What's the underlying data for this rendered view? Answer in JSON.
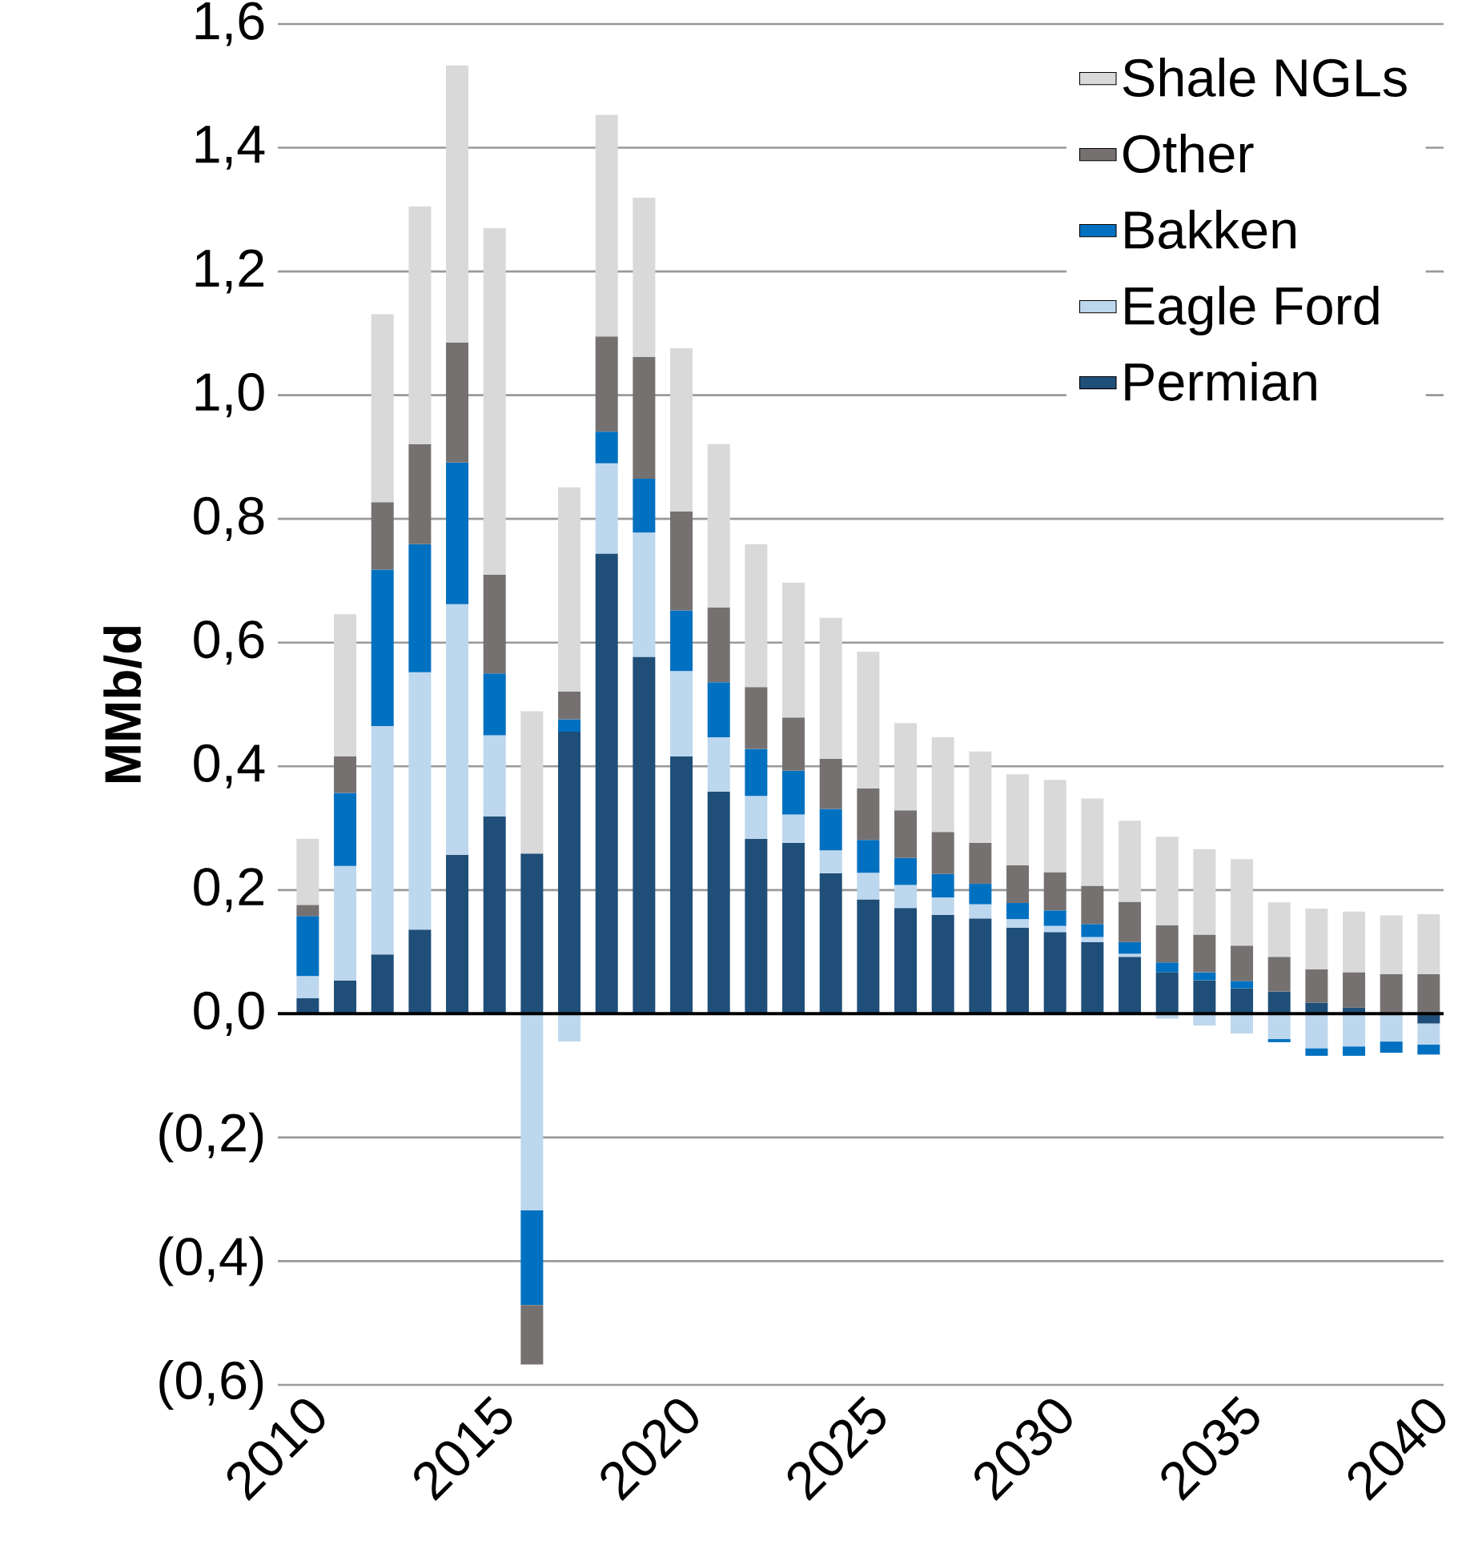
{
  "chart_data": {
    "type": "bar",
    "stacked": true,
    "ylabel": "MMb/d",
    "categories": [
      "2010",
      null,
      null,
      null,
      null,
      "2015",
      null,
      null,
      null,
      null,
      "2020",
      null,
      null,
      null,
      null,
      "2025",
      null,
      null,
      null,
      null,
      "2030",
      null,
      null,
      null,
      null,
      "2035",
      null,
      null,
      null,
      null,
      "2040"
    ],
    "series": [
      {
        "name": "Permian",
        "color": "#1f4e79",
        "values": [
          0.025,
          0.054,
          0.096,
          0.136,
          0.257,
          0.319,
          0.259,
          0.456,
          0.744,
          0.577,
          0.416,
          0.359,
          0.283,
          0.276,
          0.227,
          0.185,
          0.171,
          0.16,
          0.154,
          0.139,
          0.132,
          0.116,
          0.092,
          0.067,
          0.054,
          0.041,
          0.036,
          0.018,
          0.01,
          0.0,
          -0.016
        ]
      },
      {
        "name": "Eagle Ford",
        "color": "#bdd7ee",
        "values": [
          0.036,
          0.185,
          0.369,
          0.416,
          0.405,
          0.131,
          -0.318,
          -0.045,
          0.146,
          0.201,
          0.138,
          0.088,
          0.069,
          0.046,
          0.037,
          0.043,
          0.037,
          0.028,
          0.023,
          0.014,
          0.01,
          0.008,
          0.005,
          -0.008,
          -0.019,
          -0.032,
          -0.041,
          -0.056,
          -0.053,
          -0.045,
          -0.034
        ]
      },
      {
        "name": "Bakken",
        "color": "#0070c0",
        "values": [
          0.097,
          0.118,
          0.253,
          0.207,
          0.229,
          0.1,
          -0.153,
          0.02,
          0.051,
          0.087,
          0.098,
          0.089,
          0.076,
          0.071,
          0.067,
          0.053,
          0.044,
          0.038,
          0.033,
          0.026,
          0.025,
          0.021,
          0.019,
          0.016,
          0.013,
          0.012,
          -0.005,
          -0.012,
          -0.015,
          -0.018,
          -0.016
        ]
      },
      {
        "name": "Other",
        "color": "#767171",
        "values": [
          0.018,
          0.059,
          0.109,
          0.162,
          0.194,
          0.16,
          -0.096,
          0.045,
          0.154,
          0.197,
          0.16,
          0.121,
          0.1,
          0.086,
          0.081,
          0.083,
          0.077,
          0.068,
          0.066,
          0.061,
          0.062,
          0.062,
          0.065,
          0.06,
          0.061,
          0.057,
          0.056,
          0.054,
          0.057,
          0.064,
          0.064
        ]
      },
      {
        "name": "Shale NGLs",
        "color": "#d9d9d9",
        "values": [
          0.107,
          0.23,
          0.304,
          0.384,
          0.448,
          0.56,
          0.23,
          0.33,
          0.358,
          0.257,
          0.264,
          0.264,
          0.231,
          0.218,
          0.228,
          0.221,
          0.141,
          0.153,
          0.148,
          0.147,
          0.149,
          0.141,
          0.131,
          0.143,
          0.138,
          0.14,
          0.088,
          0.098,
          0.098,
          0.095,
          0.097
        ]
      }
    ],
    "ylim": [
      -0.6,
      1.6
    ],
    "yticks": [
      {
        "value": -0.6,
        "label": "(0,6)"
      },
      {
        "value": -0.4,
        "label": "(0,4)"
      },
      {
        "value": -0.2,
        "label": "(0,2)"
      },
      {
        "value": 0,
        "label": "0,0"
      },
      {
        "value": 0.2,
        "label": "0,2"
      },
      {
        "value": 0.4,
        "label": "0,4"
      },
      {
        "value": 0.6,
        "label": "0,6"
      },
      {
        "value": 0.8,
        "label": "0,8"
      },
      {
        "value": 1.0,
        "label": "1,0"
      },
      {
        "value": 1.2,
        "label": "1,2"
      },
      {
        "value": 1.4,
        "label": "1,4"
      },
      {
        "value": 1.6,
        "label": "1,6"
      }
    ],
    "grid": "y",
    "legend": "top right"
  }
}
